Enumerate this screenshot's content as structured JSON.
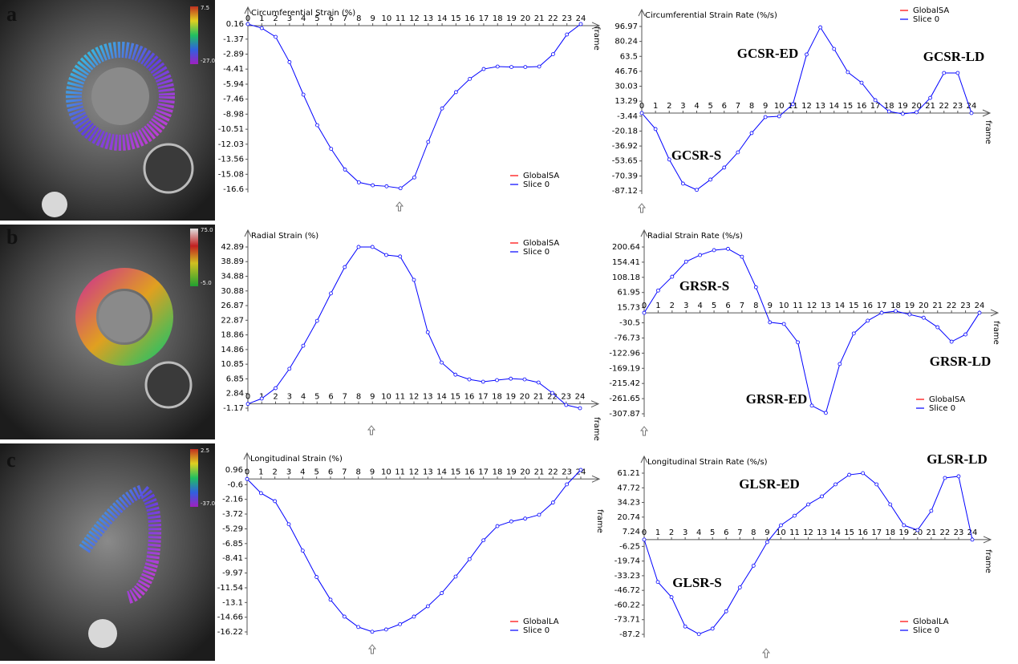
{
  "panels": [
    {
      "label": "a",
      "colorbar": [
        "7.5",
        "-27.0"
      ]
    },
    {
      "label": "b",
      "colorbar": [
        "75.0",
        "-5.0"
      ]
    },
    {
      "label": "c",
      "colorbar": [
        "2.5",
        "-37.0"
      ]
    }
  ],
  "chart_data": [
    {
      "type": "line",
      "title": "Circumferential Strain (%)",
      "xlabel": "frame",
      "x": [
        0,
        1,
        2,
        3,
        4,
        5,
        6,
        7,
        8,
        9,
        10,
        11,
        12,
        13,
        14,
        15,
        16,
        17,
        18,
        19,
        20,
        21,
        22,
        23,
        24
      ],
      "xlim": [
        0,
        24
      ],
      "xticks": [
        0,
        1,
        2,
        3,
        4,
        5,
        6,
        7,
        8,
        9,
        10,
        11,
        12,
        13,
        14,
        15,
        16,
        17,
        18,
        19,
        20,
        21,
        22,
        23,
        24
      ],
      "ylim": [
        -16.6,
        0.16
      ],
      "yticks": [
        0.16,
        -1.37,
        -2.89,
        -4.41,
        -5.94,
        -7.46,
        -8.98,
        -10.51,
        -12.03,
        -13.56,
        -15.08,
        -16.6
      ],
      "series": [
        {
          "name": "GlobalSA",
          "color": "#ff0000",
          "values": [
            null,
            null,
            null,
            null,
            null,
            null,
            null,
            null,
            null,
            null,
            null,
            null,
            null,
            null,
            null,
            null,
            null,
            null,
            null,
            null,
            null,
            null,
            null,
            null,
            null
          ]
        },
        {
          "name": "Slice 0",
          "color": "#0000ff",
          "values": [
            0.16,
            -0.25,
            -1.14,
            -3.7,
            -7.0,
            -10.1,
            -12.5,
            -14.6,
            -15.9,
            -16.2,
            -16.3,
            -16.5,
            -15.4,
            -11.8,
            -8.4,
            -6.75,
            -5.4,
            -4.4,
            -4.15,
            -4.2,
            -4.2,
            -4.15,
            -2.9,
            -0.9,
            0.16
          ]
        }
      ],
      "annotations": []
    },
    {
      "type": "line",
      "title": "Circumferential Strain Rate (%/s)",
      "xlabel": "frame",
      "x": [
        0,
        1,
        2,
        3,
        4,
        5,
        6,
        7,
        8,
        9,
        10,
        11,
        12,
        13,
        14,
        15,
        16,
        17,
        18,
        19,
        20,
        21,
        22,
        23,
        24
      ],
      "xlim": [
        0,
        24
      ],
      "xticks": [
        0,
        1,
        2,
        3,
        4,
        5,
        6,
        7,
        8,
        9,
        10,
        11,
        12,
        13,
        14,
        15,
        16,
        17,
        18,
        19,
        20,
        21,
        22,
        23,
        24
      ],
      "ylim": [
        -87.12,
        96.97
      ],
      "yticks": [
        96.97,
        80.24,
        63.5,
        46.76,
        30.03,
        13.29,
        -3.44,
        -20.18,
        -36.92,
        -53.65,
        -70.39,
        -87.12
      ],
      "series": [
        {
          "name": "GlobalSA",
          "color": "#ff0000",
          "values": [
            null,
            null,
            null,
            null,
            null,
            null,
            null,
            null,
            null,
            null,
            null,
            null,
            null,
            null,
            null,
            null,
            null,
            null,
            null,
            null,
            null,
            null,
            null,
            null,
            null
          ]
        },
        {
          "name": "Slice 0",
          "color": "#0000ff",
          "values": [
            0,
            -17.9,
            -52,
            -79,
            -86,
            -74.5,
            -61,
            -44,
            -22.4,
            -4.5,
            -3.6,
            9.9,
            65.6,
            96,
            71.8,
            45.8,
            34,
            14.4,
            1.8,
            -0.9,
            0.9,
            17,
            44.9,
            44.9,
            0
          ]
        }
      ],
      "annotations": [
        "GCSR-ED",
        "GCSR-LD",
        "GCSR-S"
      ]
    },
    {
      "type": "line",
      "title": "Radial Strain (%)",
      "xlabel": "frame",
      "x": [
        0,
        1,
        2,
        3,
        4,
        5,
        6,
        7,
        8,
        9,
        10,
        11,
        12,
        13,
        14,
        15,
        16,
        17,
        18,
        19,
        20,
        21,
        22,
        23,
        24
      ],
      "xlim": [
        0,
        24
      ],
      "xticks": [
        0,
        1,
        2,
        3,
        4,
        5,
        6,
        7,
        8,
        9,
        10,
        11,
        12,
        13,
        14,
        15,
        16,
        17,
        18,
        19,
        20,
        21,
        22,
        23,
        24
      ],
      "ylim": [
        -1.17,
        42.89
      ],
      "yticks": [
        42.89,
        38.89,
        34.88,
        30.88,
        26.87,
        22.87,
        18.86,
        14.86,
        10.85,
        6.85,
        2.84,
        -1.17
      ],
      "series": [
        {
          "name": "GlobalSA",
          "color": "#ff0000",
          "values": [
            null,
            null,
            null,
            null,
            null,
            null,
            null,
            null,
            null,
            null,
            null,
            null,
            null,
            null,
            null,
            null,
            null,
            null,
            null,
            null,
            null,
            null,
            null,
            null,
            null
          ]
        },
        {
          "name": "Slice 0",
          "color": "#0000ff",
          "values": [
            0,
            1.46,
            4.3,
            9.6,
            15.9,
            22.7,
            30.2,
            37.4,
            42.9,
            42.9,
            40.7,
            40.3,
            33.9,
            19.6,
            11.3,
            8.0,
            6.7,
            6.06,
            6.5,
            6.9,
            6.7,
            5.85,
            3.0,
            -0.3,
            -1.17
          ]
        }
      ],
      "annotations": []
    },
    {
      "type": "line",
      "title": "Radial Strain Rate (%/s)",
      "xlabel": "frame",
      "x": [
        0,
        1,
        2,
        3,
        4,
        5,
        6,
        7,
        8,
        9,
        10,
        11,
        12,
        13,
        14,
        15,
        16,
        17,
        18,
        19,
        20,
        21,
        22,
        23,
        24
      ],
      "xlim": [
        0,
        24
      ],
      "xticks": [
        0,
        1,
        2,
        3,
        4,
        5,
        6,
        7,
        8,
        9,
        10,
        11,
        12,
        13,
        14,
        15,
        16,
        17,
        18,
        19,
        20,
        21,
        22,
        23,
        24
      ],
      "ylim": [
        -307.87,
        200.64
      ],
      "yticks": [
        200.64,
        154.41,
        108.18,
        61.95,
        15.73,
        -30.5,
        -76.73,
        -122.96,
        -169.19,
        -215.42,
        -261.65,
        -307.87
      ],
      "series": [
        {
          "name": "GlobalSA",
          "color": "#ff0000",
          "values": [
            null,
            null,
            null,
            null,
            null,
            null,
            null,
            null,
            null,
            null,
            null,
            null,
            null,
            null,
            null,
            null,
            null,
            null,
            null,
            null,
            null,
            null,
            null,
            null,
            null
          ]
        },
        {
          "name": "Slice 0",
          "color": "#0000ff",
          "values": [
            0,
            68,
            110,
            156,
            176,
            191,
            195,
            171,
            78,
            -29,
            -34,
            -90,
            -283,
            -305,
            -156,
            -63,
            -24,
            0,
            5,
            -5,
            -15,
            -44,
            -88,
            -66,
            0
          ]
        }
      ],
      "annotations": [
        "GRSR-S",
        "GRSR-LD",
        "GRSR-ED"
      ]
    },
    {
      "type": "line",
      "title": "Longitudinal Strain (%)",
      "xlabel": "frame",
      "x": [
        0,
        1,
        2,
        3,
        4,
        5,
        6,
        7,
        8,
        9,
        10,
        11,
        12,
        13,
        14,
        15,
        16,
        17,
        18,
        19,
        20,
        21,
        22,
        23,
        24
      ],
      "xlim": [
        0,
        24
      ],
      "xticks": [
        0,
        1,
        2,
        3,
        4,
        5,
        6,
        7,
        8,
        9,
        10,
        11,
        12,
        13,
        14,
        15,
        16,
        17,
        18,
        19,
        20,
        21,
        22,
        23,
        24
      ],
      "ylim": [
        -16.22,
        0.96
      ],
      "yticks": [
        0.96,
        -0.6,
        -2.16,
        -3.72,
        -5.29,
        -6.85,
        -8.41,
        -9.97,
        -11.54,
        -13.1,
        -14.66,
        -16.22
      ],
      "series": [
        {
          "name": "GlobalLA",
          "color": "#ff0000",
          "values": [
            null,
            null,
            null,
            null,
            null,
            null,
            null,
            null,
            null,
            null,
            null,
            null,
            null,
            null,
            null,
            null,
            null,
            null,
            null,
            null,
            null,
            null,
            null,
            null,
            null
          ]
        },
        {
          "name": "Slice 0",
          "color": "#0000ff",
          "values": [
            0,
            -1.5,
            -2.35,
            -4.8,
            -7.6,
            -10.4,
            -12.8,
            -14.6,
            -15.7,
            -16.2,
            -15.96,
            -15.4,
            -14.6,
            -13.5,
            -12.1,
            -10.35,
            -8.5,
            -6.5,
            -5.0,
            -4.5,
            -4.2,
            -3.8,
            -2.5,
            -0.57,
            0.96
          ]
        }
      ],
      "annotations": []
    },
    {
      "type": "line",
      "title": "Longitudinal Strain Rate (%/s)",
      "xlabel": "frame",
      "x": [
        0,
        1,
        2,
        3,
        4,
        5,
        6,
        7,
        8,
        9,
        10,
        11,
        12,
        13,
        14,
        15,
        16,
        17,
        18,
        19,
        20,
        21,
        22,
        23,
        24
      ],
      "xlim": [
        0,
        24
      ],
      "xticks": [
        0,
        1,
        2,
        3,
        4,
        5,
        6,
        7,
        8,
        9,
        10,
        11,
        12,
        13,
        14,
        15,
        16,
        17,
        18,
        19,
        20,
        21,
        22,
        23,
        24
      ],
      "ylim": [
        -87.2,
        61.21
      ],
      "yticks": [
        61.21,
        47.72,
        34.23,
        20.74,
        7.24,
        -6.25,
        -19.74,
        -33.23,
        -46.72,
        -60.22,
        -73.71,
        -87.2
      ],
      "series": [
        {
          "name": "GlobalLA",
          "color": "#ff0000",
          "values": [
            null,
            null,
            null,
            null,
            null,
            null,
            null,
            null,
            null,
            null,
            null,
            null,
            null,
            null,
            null,
            null,
            null,
            null,
            null,
            null,
            null,
            null,
            null,
            null,
            null
          ]
        },
        {
          "name": "Slice 0",
          "color": "#0000ff",
          "values": [
            0,
            -39,
            -53,
            -80,
            -87,
            -82,
            -66,
            -44,
            -24,
            -2.3,
            13.2,
            22,
            32.4,
            39.8,
            50.9,
            59.7,
            61.2,
            50.9,
            32.4,
            13.2,
            8.8,
            26.5,
            56.8,
            58.3,
            0
          ]
        }
      ],
      "annotations": [
        "GLSR-ED",
        "GLSR-LD",
        "GLSR-S"
      ]
    }
  ]
}
